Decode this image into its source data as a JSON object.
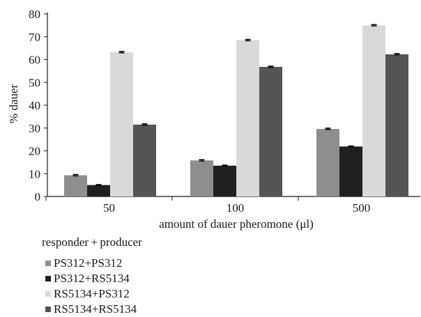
{
  "chart_data": {
    "type": "bar",
    "title": "",
    "xlabel": "amount of dauer pheromone (μl)",
    "ylabel": "% dauer",
    "ylim": [
      0,
      80
    ],
    "yticks": [
      "0",
      "10",
      "20",
      "30",
      "40",
      "50",
      "60",
      "70",
      "80"
    ],
    "categories": [
      "50",
      "100",
      "500"
    ],
    "series": [
      {
        "name": "PS312+PS312",
        "color": "#8e8e90",
        "values": [
          9.3,
          15.8,
          29.6
        ],
        "errors": [
          0.3,
          0.3,
          0.3
        ]
      },
      {
        "name": "PS312+RS5134",
        "color": "#231f20",
        "values": [
          5.0,
          13.5,
          21.9
        ],
        "errors": [
          0.2,
          0.2,
          0.2
        ]
      },
      {
        "name": "RS5134+PS312",
        "color": "#d9d9d9",
        "values": [
          63.2,
          68.5,
          75.0
        ],
        "errors": [
          0.3,
          0.3,
          0.3
        ]
      },
      {
        "name": "RS5134+RS5134",
        "color": "#545456",
        "values": [
          31.5,
          56.8,
          62.3
        ],
        "errors": [
          0.3,
          0.3,
          0.3
        ]
      }
    ],
    "grid": false,
    "error_bars": true,
    "legend": {
      "title": "responder + producer",
      "position": "bottom-left"
    }
  }
}
